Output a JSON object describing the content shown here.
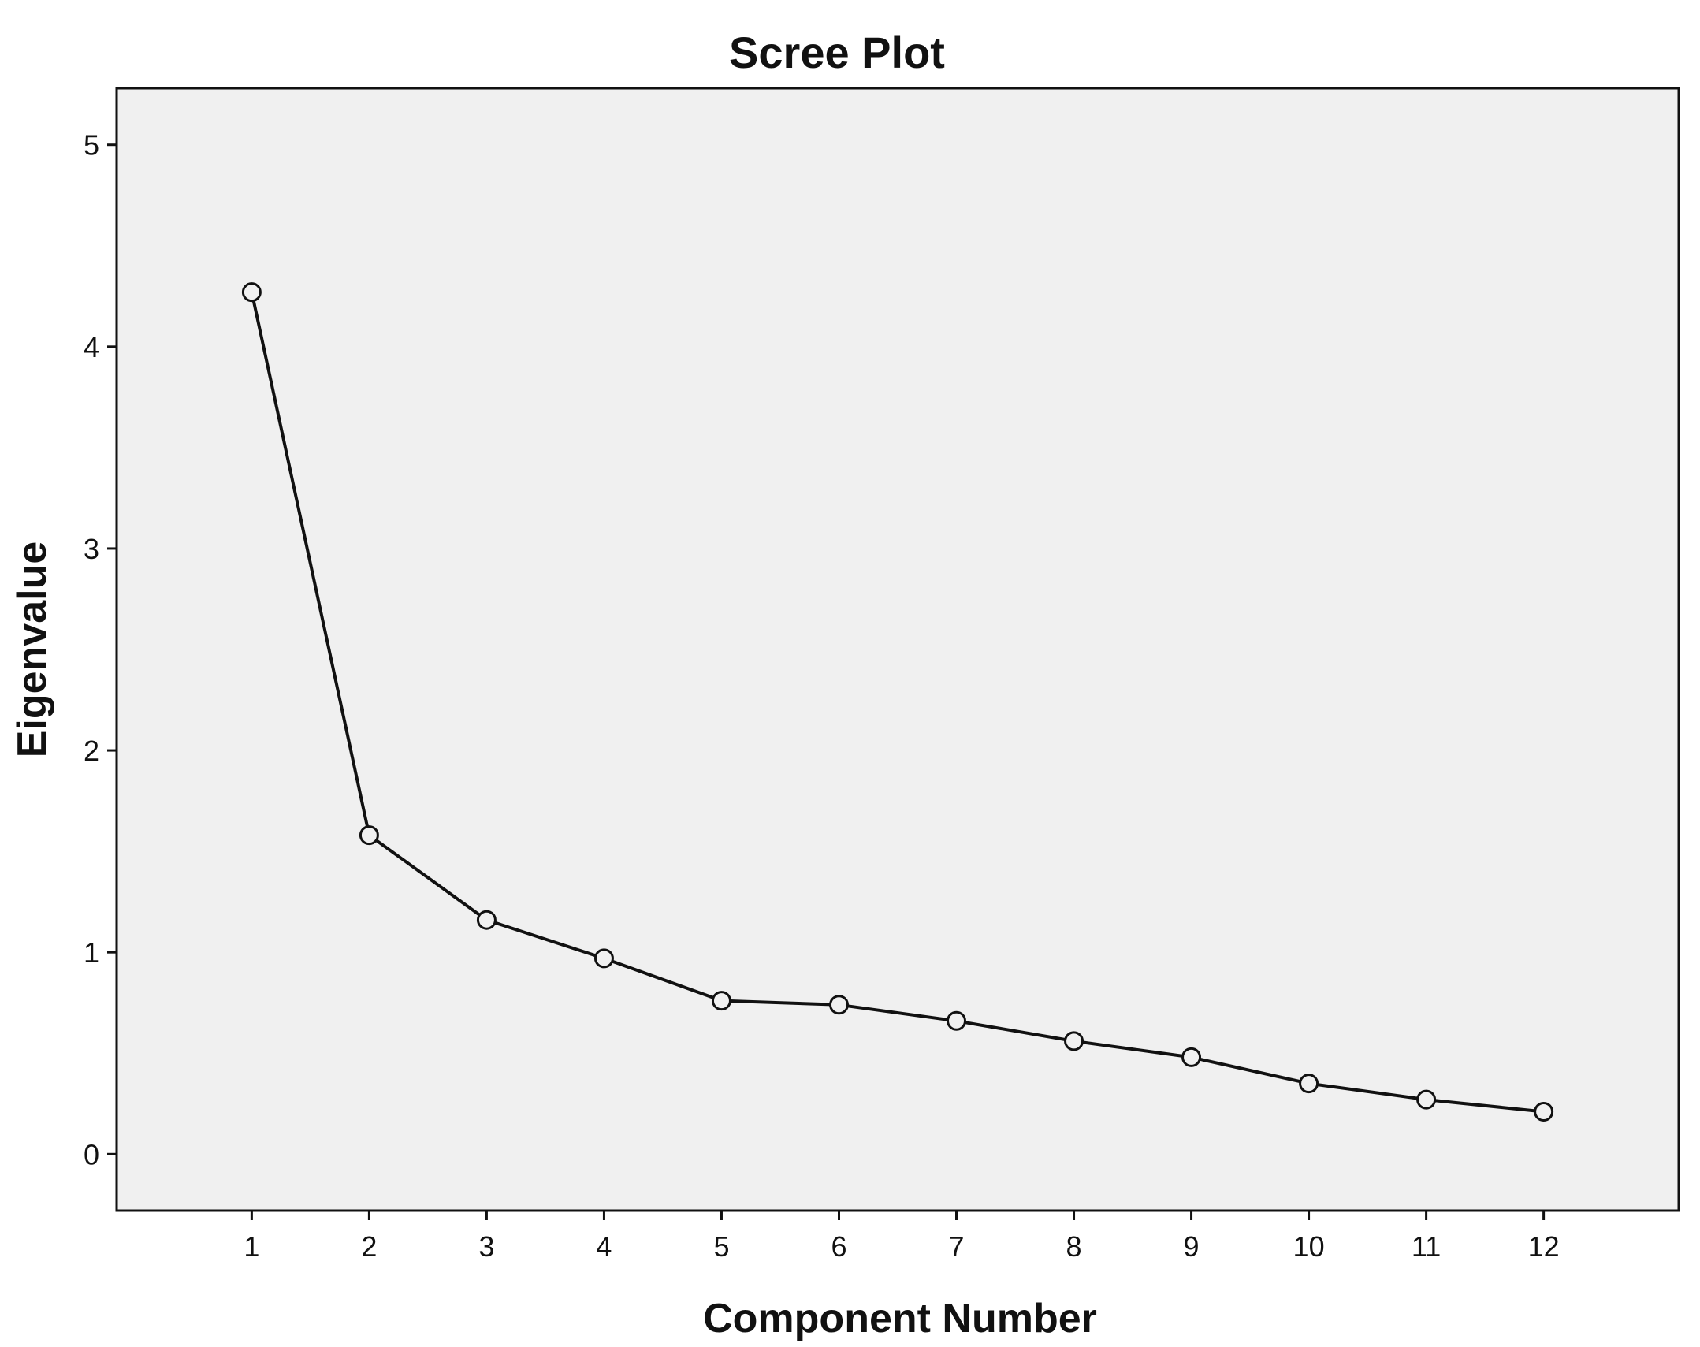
{
  "chart_data": {
    "type": "line",
    "title": "Scree Plot",
    "xlabel": "Component Number",
    "ylabel": "Eigenvalue",
    "x": [
      1,
      2,
      3,
      4,
      5,
      6,
      7,
      8,
      9,
      10,
      11,
      12
    ],
    "series": [
      {
        "values": [
          4.27,
          1.58,
          1.16,
          0.97,
          0.76,
          0.74,
          0.66,
          0.56,
          0.48,
          0.35,
          0.27,
          0.21
        ]
      }
    ],
    "xlim": [
      -0.15,
      13.15
    ],
    "ylim": [
      -0.28,
      5.28
    ],
    "xticks": [
      1,
      2,
      3,
      4,
      5,
      6,
      7,
      8,
      9,
      10,
      11,
      12
    ],
    "yticks": [
      0,
      1,
      2,
      3,
      4,
      5
    ],
    "grid": false,
    "legend": false,
    "marker": "open-circle",
    "colors": {
      "plot_background": "#f0f0f0",
      "line": "#111111",
      "axis": "#111111",
      "marker_fill": "#f0f0f0"
    }
  }
}
